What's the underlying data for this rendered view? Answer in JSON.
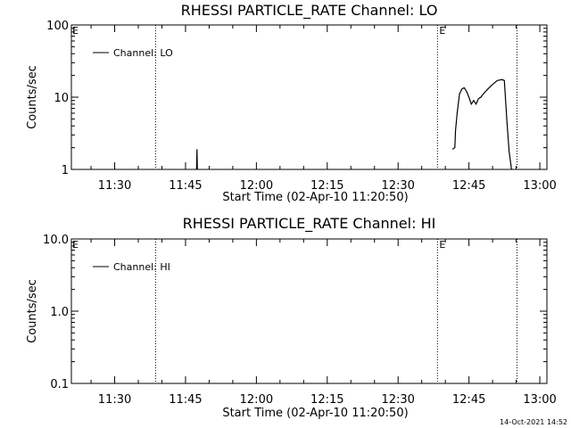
{
  "footer": {
    "timestamp": "14-Oct-2021 14:52"
  },
  "chart_data": [
    {
      "type": "line",
      "title": "RHESSI PARTICLE_RATE Channel: LO",
      "xlabel": "Start Time (02-Apr-10 11:20:50)",
      "ylabel": "Counts/sec",
      "xlim": [
        "11:20:50",
        "13:01:30"
      ],
      "ylim": [
        1,
        100
      ],
      "yscale": "log",
      "xticks": [
        "11:30",
        "11:45",
        "12:00",
        "12:15",
        "12:30",
        "12:45",
        "13:00"
      ],
      "yticks": [
        "1",
        "10",
        "100"
      ],
      "grid": false,
      "legend": "top-left",
      "series": [
        {
          "name": "Channel: LO",
          "segments": [
            [
              {
                "x": "11:47:20",
                "y": 1
              },
              {
                "x": "11:47:25",
                "y": 1.9
              },
              {
                "x": "11:47:30",
                "y": 1
              }
            ],
            [
              {
                "x": "12:41:30",
                "y": 1.9
              },
              {
                "x": "12:42:00",
                "y": 2.0
              },
              {
                "x": "12:42:10",
                "y": 3.5
              },
              {
                "x": "12:42:30",
                "y": 6.0
              },
              {
                "x": "12:43:00",
                "y": 11
              },
              {
                "x": "12:43:30",
                "y": 13
              },
              {
                "x": "12:44:00",
                "y": 13.5
              },
              {
                "x": "12:44:30",
                "y": 12
              },
              {
                "x": "12:45:00",
                "y": 10
              },
              {
                "x": "12:45:30",
                "y": 8
              },
              {
                "x": "12:46:00",
                "y": 9
              },
              {
                "x": "12:46:30",
                "y": 8
              },
              {
                "x": "12:47:00",
                "y": 9.5
              },
              {
                "x": "12:47:30",
                "y": 10
              },
              {
                "x": "12:48:00",
                "y": 11
              },
              {
                "x": "12:49:00",
                "y": 13
              },
              {
                "x": "12:50:00",
                "y": 15
              },
              {
                "x": "12:51:00",
                "y": 17
              },
              {
                "x": "12:52:00",
                "y": 17.5
              },
              {
                "x": "12:52:30",
                "y": 17
              },
              {
                "x": "12:53:00",
                "y": 5
              },
              {
                "x": "12:53:30",
                "y": 1.8
              },
              {
                "x": "12:54:00",
                "y": 1
              }
            ]
          ]
        }
      ],
      "markers": [
        {
          "x": "11:38:40",
          "label": ""
        },
        {
          "x": "12:38:20",
          "label": "E"
        },
        {
          "x": "12:55:10",
          "label": ""
        }
      ],
      "corner_label": "E"
    },
    {
      "type": "line",
      "title": "RHESSI PARTICLE_RATE Channel: HI",
      "xlabel": "Start Time (02-Apr-10 11:20:50)",
      "ylabel": "Counts/sec",
      "xlim": [
        "11:20:50",
        "13:01:30"
      ],
      "ylim": [
        0.1,
        10
      ],
      "yscale": "log",
      "xticks": [
        "11:30",
        "11:45",
        "12:00",
        "12:15",
        "12:30",
        "12:45",
        "13:00"
      ],
      "yticks": [
        "0.1",
        "1.0",
        "10.0"
      ],
      "grid": false,
      "legend": "top-left",
      "series": [
        {
          "name": "Channel: HI",
          "segments": []
        }
      ],
      "markers": [
        {
          "x": "11:38:40",
          "label": ""
        },
        {
          "x": "12:38:20",
          "label": "E"
        },
        {
          "x": "12:55:10",
          "label": ""
        }
      ],
      "corner_label": "E"
    }
  ]
}
